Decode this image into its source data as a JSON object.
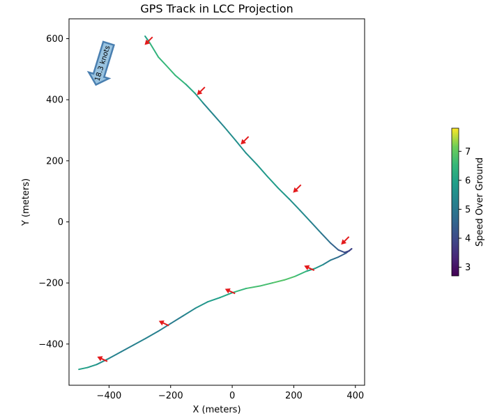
{
  "chart_data": {
    "type": "line",
    "title": "GPS Track in LCC Projection",
    "xlabel": "X (meters)",
    "ylabel": "Y (meters)",
    "xlim": [
      -530,
      430
    ],
    "ylim": [
      -535,
      665
    ],
    "xticks": [
      -400,
      -200,
      0,
      200,
      400
    ],
    "yticks": [
      -400,
      -200,
      0,
      200,
      400,
      600
    ],
    "xtick_labels": [
      "−400",
      "−200",
      "0",
      "200",
      "400"
    ],
    "ytick_labels": [
      "−400",
      "−200",
      "0",
      "200",
      "400",
      "600"
    ],
    "grid": false,
    "series": [
      {
        "x": [
          -283,
          -270,
          -240,
          -215,
          -185,
          -150,
          -120,
          -95,
          -60,
          -25,
          10,
          45,
          80,
          115,
          150,
          185,
          220,
          255,
          290,
          320,
          345,
          365,
          380,
          388,
          370,
          345,
          320,
          295,
          270,
          240,
          205,
          170,
          130,
          90,
          45,
          0,
          -40,
          -80,
          -120,
          -160,
          -200,
          -240,
          -280,
          -320,
          -360,
          -400,
          -440,
          -470,
          -498
        ],
        "y": [
          608,
          590,
          540,
          513,
          480,
          450,
          420,
          390,
          350,
          310,
          268,
          225,
          188,
          148,
          110,
          75,
          38,
          0,
          -38,
          -70,
          -92,
          -100,
          -95,
          -88,
          -102,
          -115,
          -125,
          -140,
          -152,
          -162,
          -178,
          -190,
          -200,
          -210,
          -218,
          -232,
          -248,
          -262,
          -283,
          -308,
          -333,
          -358,
          -381,
          -403,
          -425,
          -447,
          -467,
          -477,
          -483
        ],
        "speed": [
          5.8,
          6.2,
          6.6,
          6.4,
          6.7,
          6.3,
          6.0,
          5.5,
          5.2,
          5.4,
          5.6,
          5.5,
          5.7,
          5.8,
          5.9,
          5.6,
          5.5,
          5.3,
          5.0,
          4.7,
          4.3,
          4.0,
          3.8,
          3.6,
          4.2,
          4.6,
          5.0,
          5.4,
          5.8,
          6.3,
          6.7,
          6.9,
          6.8,
          6.6,
          6.8,
          6.2,
          6.0,
          5.8,
          5.5,
          5.2,
          5.0,
          5.1,
          5.3,
          5.2,
          5.1,
          5.4,
          5.6,
          5.9,
          6.0
        ]
      }
    ],
    "heading_markers": [
      {
        "x": -270,
        "y": 594,
        "dir": "sw"
      },
      {
        "x": -100,
        "y": 430,
        "dir": "sw"
      },
      {
        "x": 42,
        "y": 268,
        "dir": "sw"
      },
      {
        "x": 212,
        "y": 110,
        "dir": "sw"
      },
      {
        "x": 368,
        "y": -60,
        "dir": "sw"
      },
      {
        "x": 252,
        "y": -152,
        "dir": "w"
      },
      {
        "x": -5,
        "y": -228,
        "dir": "w"
      },
      {
        "x": -220,
        "y": -333,
        "dir": "w"
      },
      {
        "x": -420,
        "y": -450,
        "dir": "w"
      }
    ],
    "wind_arrow": {
      "label": "18.3 knots",
      "fill": "#99c3e0",
      "stroke": "#4a7fb0"
    },
    "marker_color": "#e31a1c",
    "colorbar": {
      "label": "Speed Over Ground",
      "min": 2.7,
      "max": 7.8,
      "ticks": [
        3,
        4,
        5,
        6,
        7
      ],
      "tick_labels": [
        "3",
        "4",
        "5",
        "6",
        "7"
      ],
      "colormap": "viridis"
    }
  }
}
